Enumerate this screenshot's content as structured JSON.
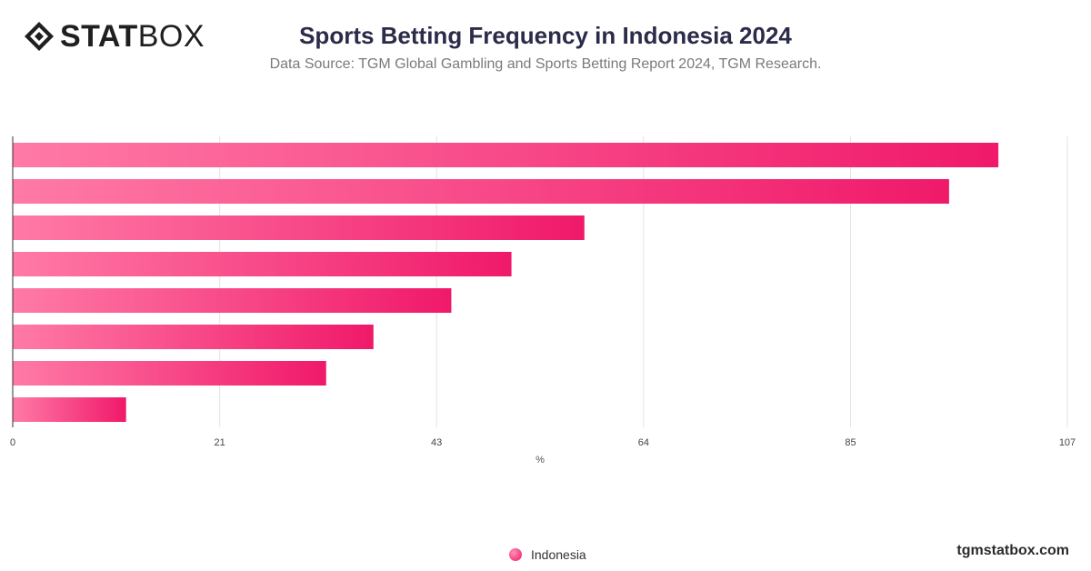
{
  "brand": {
    "logo_bold": "STAT",
    "logo_light": "BOX",
    "site": "tgmstatbox.com"
  },
  "colors": {
    "bar_start": "#ff7aa6",
    "bar_end": "#f0196a",
    "grid": "#e3e3e3",
    "axis": "#333333"
  },
  "chart_data": {
    "type": "bar",
    "orientation": "horizontal",
    "title": "Sports Betting Frequency in Indonesia 2024",
    "subtitle": "Data Source: TGM Global Gambling and Sports Betting Report 2024, TGM Research.",
    "xlabel": "%",
    "ylabel": "",
    "xlim": [
      0,
      107
    ],
    "xticks": [
      "0",
      "21",
      "43",
      "64",
      "85",
      "107"
    ],
    "grid": true,
    "legend_position": "bottom",
    "series": [
      {
        "name": "Indonesia",
        "values": [
          100,
          95,
          58,
          50.6,
          44.5,
          36.6,
          31.8,
          11.5
        ]
      }
    ]
  }
}
